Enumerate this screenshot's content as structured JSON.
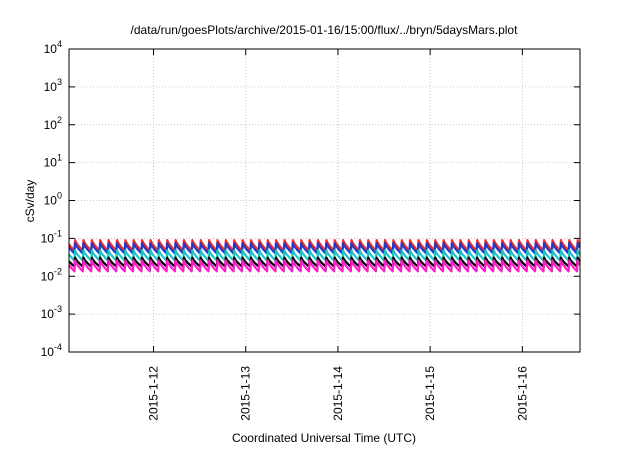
{
  "chart_data": {
    "type": "line",
    "title": "/data/run/goesPlots/archive/2015-01-16/15:00/flux/../bryn/5daysMars.plot",
    "xlabel": "Coordinated Universal Time (UTC)",
    "ylabel": "cSv/day",
    "yscale": "log",
    "ylim_exp": [
      -4,
      4
    ],
    "y_ticks": [
      {
        "base": "10",
        "exp": "-4"
      },
      {
        "base": "10",
        "exp": "-3"
      },
      {
        "base": "10",
        "exp": "-2"
      },
      {
        "base": "10",
        "exp": "-1"
      },
      {
        "base": "10",
        "exp": "0"
      },
      {
        "base": "10",
        "exp": "1"
      },
      {
        "base": "10",
        "exp": "2"
      },
      {
        "base": "10",
        "exp": "3"
      },
      {
        "base": "10",
        "exp": "4"
      }
    ],
    "xlim": [
      "2015-01-11T02:00",
      "2015-01-16T15:00"
    ],
    "x_ticks": [
      {
        "label": "2015-1-12",
        "date": "2015-01-12T00:00"
      },
      {
        "label": "2015-1-13",
        "date": "2015-01-13T00:00"
      },
      {
        "label": "2015-1-14",
        "date": "2015-01-14T00:00"
      },
      {
        "label": "2015-1-15",
        "date": "2015-01-15T00:00"
      },
      {
        "label": "2015-1-16",
        "date": "2015-01-16T00:00"
      }
    ],
    "grid": true,
    "legend": "none",
    "pattern": "sawtooth, ~11 cycles per day: fast rise then gradual decay",
    "series": [
      {
        "color": "#ff2a2a",
        "peak": 0.09,
        "trough": 0.048
      },
      {
        "color": "#1a3ccc",
        "peak": 0.075,
        "trough": 0.04
      },
      {
        "color": "#19c6c6",
        "peak": 0.048,
        "trough": 0.026
      },
      {
        "color": "#000000",
        "peak": 0.031,
        "trough": 0.018
      },
      {
        "color": "#ff1acc",
        "peak": 0.026,
        "trough": 0.0135
      }
    ]
  }
}
